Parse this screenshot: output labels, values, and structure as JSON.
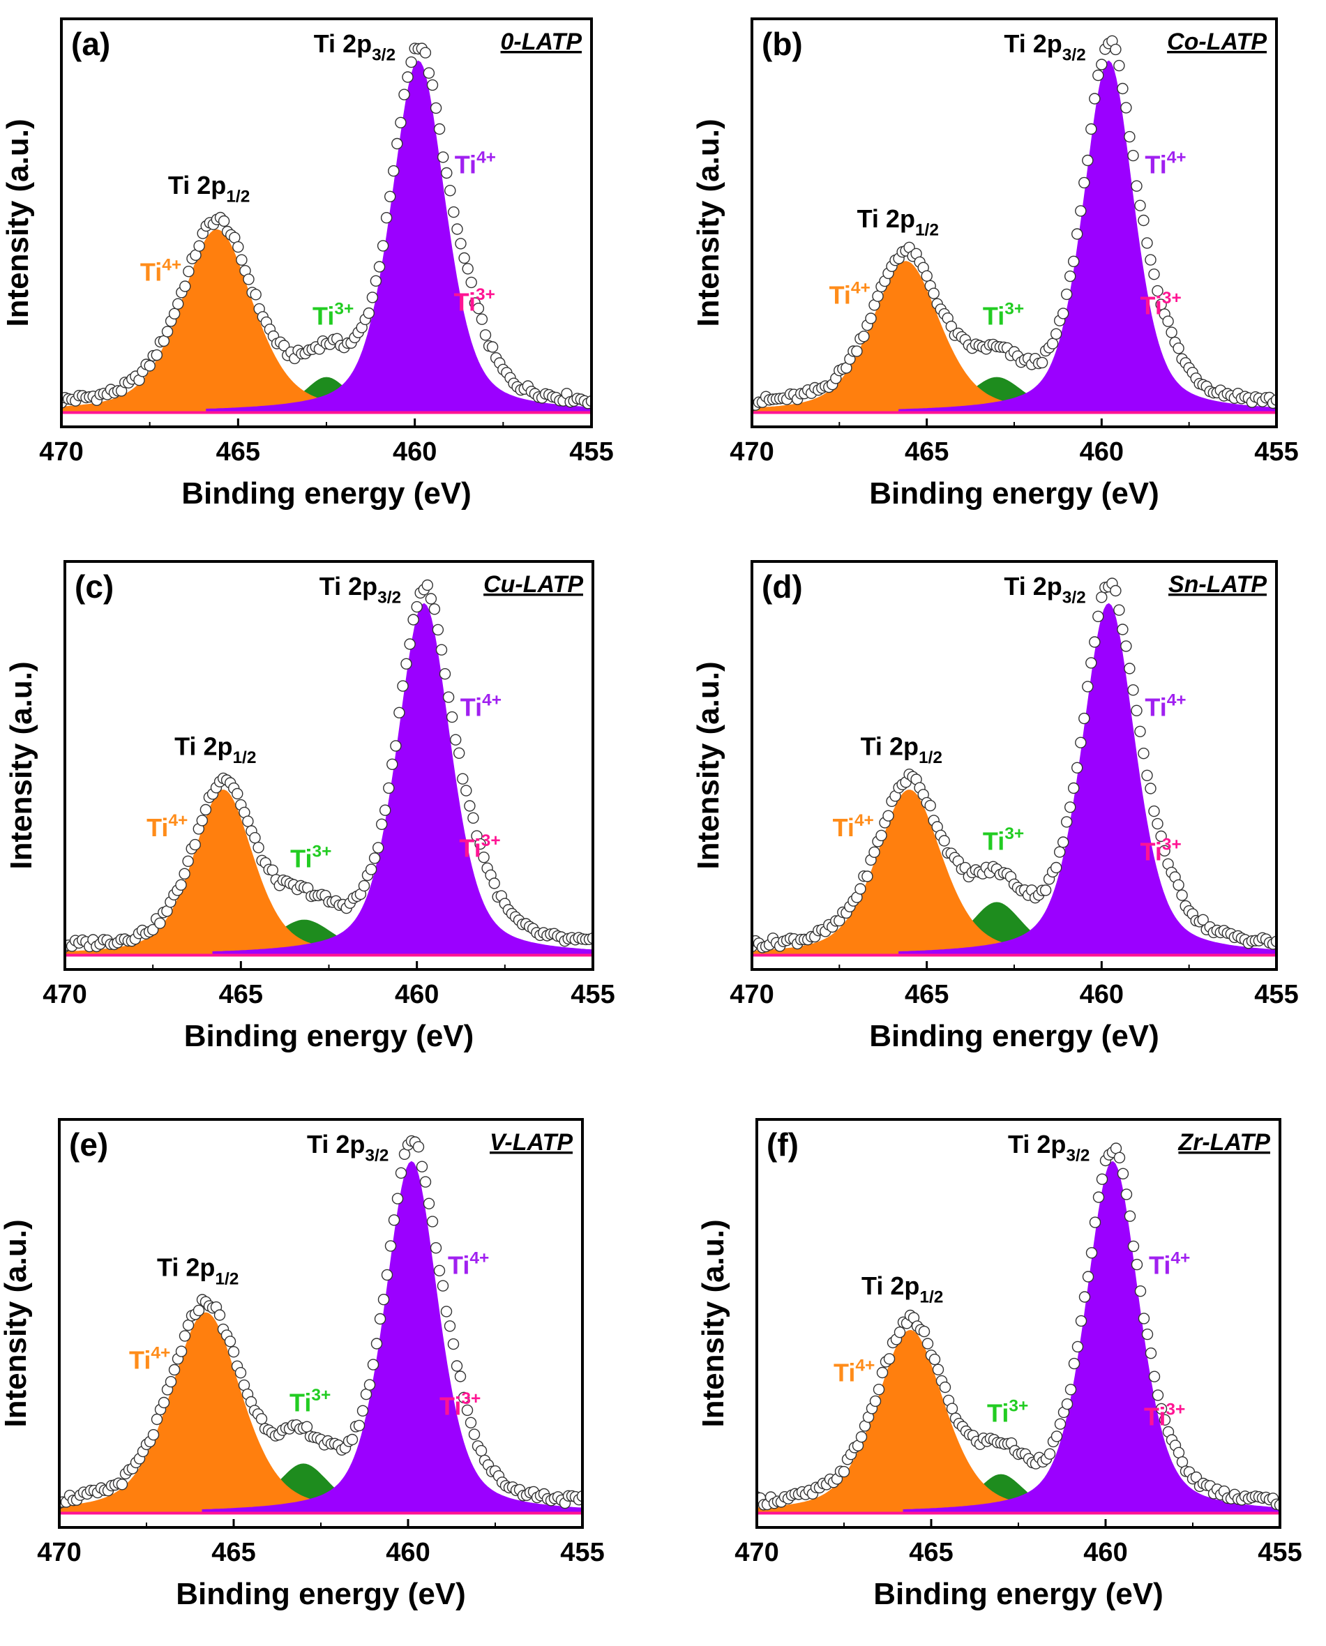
{
  "figure": {
    "axis_xlabel": "Binding energy (eV)",
    "axis_ylabel": "Intensity (a.u.)",
    "x_ticks": [
      "470",
      "465",
      "460",
      "455"
    ],
    "colors": {
      "ti4_p12": "#ff7f0e",
      "ti3_p12": "#1e8c1e",
      "ti4_p32": "#9b00ff",
      "ti3_p32": "#ff1493",
      "label_ti4_p12": "#ff8c1a",
      "label_ti3_p12": "#22cc22",
      "label_ti4_p32": "#a020f0",
      "label_ti3_p32": "#ff1493",
      "frame": "#000000",
      "marker_edge": "#333333"
    }
  },
  "chart_data": [
    {
      "type": "area",
      "panel": "(a)",
      "sample": "0-LATP",
      "title": "0-LATP",
      "xlabel": "Binding energy (eV)",
      "ylabel": "Intensity (a.u.)",
      "xlim": [
        470,
        455
      ],
      "ylim": [
        0,
        1.07
      ],
      "grid": false,
      "peaks": [
        {
          "name": "Ti4+ (2p1/2)",
          "center": 465.6,
          "height": 0.52,
          "fwhm": 2.4
        },
        {
          "name": "Ti3+ (2p1/2)",
          "center": 462.5,
          "height": 0.1,
          "fwhm": 1.5
        },
        {
          "name": "Ti4+ (2p3/2)",
          "center": 459.9,
          "height": 1.0,
          "fwhm": 1.8
        },
        {
          "name": "Ti3+ (2p3/2)",
          "center": 458.5,
          "height": 0.14,
          "fwhm": 1.4
        }
      ],
      "annotations": {
        "p12": {
          "main": "Ti 2p",
          "sub": "1/2"
        },
        "p32": {
          "main": "Ti 2p",
          "sub": "3/2"
        },
        "ti4_left": {
          "main": "Ti",
          "sup": "4+"
        },
        "ti3_left": {
          "main": "Ti",
          "sup": "3+"
        },
        "ti4_right": {
          "main": "Ti",
          "sup": "4+"
        },
        "ti3_right": {
          "main": "Ti",
          "sup": "3+"
        }
      }
    },
    {
      "type": "area",
      "panel": "(b)",
      "sample": "Co-LATP",
      "title": "Co-LATP",
      "xlabel": "Binding energy (eV)",
      "ylabel": "Intensity (a.u.)",
      "xlim": [
        470,
        455
      ],
      "ylim": [
        0,
        1.07
      ],
      "grid": false,
      "peaks": [
        {
          "name": "Ti4+ (2p1/2)",
          "center": 465.6,
          "height": 0.43,
          "fwhm": 2.3
        },
        {
          "name": "Ti3+ (2p1/2)",
          "center": 463.0,
          "height": 0.1,
          "fwhm": 1.8
        },
        {
          "name": "Ti4+ (2p3/2)",
          "center": 459.8,
          "height": 1.0,
          "fwhm": 1.7
        },
        {
          "name": "Ti3+ (2p3/2)",
          "center": 458.5,
          "height": 0.13,
          "fwhm": 1.6
        }
      ],
      "annotations": {
        "p12": {
          "main": "Ti 2p",
          "sub": "1/2"
        },
        "p32": {
          "main": "Ti 2p",
          "sub": "3/2"
        },
        "ti4_left": {
          "main": "Ti",
          "sup": "4+"
        },
        "ti3_left": {
          "main": "Ti",
          "sup": "3+"
        },
        "ti4_right": {
          "main": "Ti",
          "sup": "4+"
        },
        "ti3_right": {
          "main": "Ti",
          "sup": "3+"
        }
      }
    },
    {
      "type": "area",
      "panel": "(c)",
      "sample": "Cu-LATP",
      "title": "Cu-LATP",
      "xlabel": "Binding energy (eV)",
      "ylabel": "Intensity (a.u.)",
      "xlim": [
        470,
        455
      ],
      "ylim": [
        0,
        1.07
      ],
      "grid": false,
      "peaks": [
        {
          "name": "Ti4+ (2p1/2)",
          "center": 465.5,
          "height": 0.47,
          "fwhm": 2.0
        },
        {
          "name": "Ti3+ (2p1/2)",
          "center": 463.2,
          "height": 0.1,
          "fwhm": 2.0
        },
        {
          "name": "Ti4+ (2p3/2)",
          "center": 459.8,
          "height": 1.0,
          "fwhm": 1.8
        },
        {
          "name": "Ti3+ (2p3/2)",
          "center": 458.4,
          "height": 0.13,
          "fwhm": 1.6
        }
      ],
      "annotations": {
        "p12": {
          "main": "Ti 2p",
          "sub": "1/2"
        },
        "p32": {
          "main": "Ti 2p",
          "sub": "3/2"
        },
        "ti4_left": {
          "main": "Ti",
          "sup": "4+"
        },
        "ti3_left": {
          "main": "Ti",
          "sup": "3+"
        },
        "ti4_right": {
          "main": "Ti",
          "sup": "4+"
        },
        "ti3_right": {
          "main": "Ti",
          "sup": "3+"
        }
      }
    },
    {
      "type": "area",
      "panel": "(d)",
      "sample": "Sn-LATP",
      "title": "Sn-LATP",
      "xlabel": "Binding energy (eV)",
      "ylabel": "Intensity (a.u.)",
      "xlim": [
        470,
        455
      ],
      "ylim": [
        0,
        1.07
      ],
      "grid": false,
      "peaks": [
        {
          "name": "Ti4+ (2p1/2)",
          "center": 465.5,
          "height": 0.47,
          "fwhm": 2.2
        },
        {
          "name": "Ti3+ (2p1/2)",
          "center": 463.0,
          "height": 0.15,
          "fwhm": 1.8
        },
        {
          "name": "Ti4+ (2p3/2)",
          "center": 459.8,
          "height": 1.0,
          "fwhm": 1.8
        },
        {
          "name": "Ti3+ (2p3/2)",
          "center": 458.5,
          "height": 0.12,
          "fwhm": 1.7
        }
      ],
      "annotations": {
        "p12": {
          "main": "Ti 2p",
          "sub": "1/2"
        },
        "p32": {
          "main": "Ti 2p",
          "sub": "3/2"
        },
        "ti4_left": {
          "main": "Ti",
          "sup": "4+"
        },
        "ti3_left": {
          "main": "Ti",
          "sup": "3+"
        },
        "ti4_right": {
          "main": "Ti",
          "sup": "4+"
        },
        "ti3_right": {
          "main": "Ti",
          "sup": "3+"
        }
      }
    },
    {
      "type": "area",
      "panel": "(e)",
      "sample": "V-LATP",
      "title": "V-LATP",
      "xlabel": "Binding energy (eV)",
      "ylabel": "Intensity (a.u.)",
      "xlim": [
        470,
        455
      ],
      "ylim": [
        0,
        1.07
      ],
      "grid": false,
      "peaks": [
        {
          "name": "Ti4+ (2p1/2)",
          "center": 465.8,
          "height": 0.57,
          "fwhm": 2.4
        },
        {
          "name": "Ti3+ (2p1/2)",
          "center": 463.0,
          "height": 0.14,
          "fwhm": 1.8
        },
        {
          "name": "Ti4+ (2p3/2)",
          "center": 459.9,
          "height": 1.0,
          "fwhm": 1.8
        },
        {
          "name": "Ti3+ (2p3/2)",
          "center": 458.7,
          "height": 0.13,
          "fwhm": 1.5
        }
      ],
      "annotations": {
        "p12": {
          "main": "Ti 2p",
          "sub": "1/2"
        },
        "p32": {
          "main": "Ti 2p",
          "sub": "3/2"
        },
        "ti4_left": {
          "main": "Ti",
          "sup": "4+"
        },
        "ti3_left": {
          "main": "Ti",
          "sup": "3+"
        },
        "ti4_right": {
          "main": "Ti",
          "sup": "4+"
        },
        "ti3_right": {
          "main": "Ti",
          "sup": "3+"
        }
      }
    },
    {
      "type": "area",
      "panel": "(f)",
      "sample": "Zr-LATP",
      "title": "Zr-LATP",
      "xlabel": "Binding energy (eV)",
      "ylabel": "Intensity (a.u.)",
      "xlim": [
        470,
        455
      ],
      "ylim": [
        0,
        1.07
      ],
      "grid": false,
      "peaks": [
        {
          "name": "Ti4+ (2p1/2)",
          "center": 465.6,
          "height": 0.52,
          "fwhm": 2.3
        },
        {
          "name": "Ti3+ (2p1/2)",
          "center": 463.0,
          "height": 0.11,
          "fwhm": 1.6
        },
        {
          "name": "Ti4+ (2p3/2)",
          "center": 459.8,
          "height": 1.0,
          "fwhm": 1.8
        },
        {
          "name": "Ti3+ (2p3/2)",
          "center": 458.5,
          "height": 0.05,
          "fwhm": 1.6
        }
      ],
      "annotations": {
        "p12": {
          "main": "Ti 2p",
          "sub": "1/2"
        },
        "p32": {
          "main": "Ti 2p",
          "sub": "3/2"
        },
        "ti4_left": {
          "main": "Ti",
          "sup": "4+"
        },
        "ti3_left": {
          "main": "Ti",
          "sup": "3+"
        },
        "ti4_right": {
          "main": "Ti",
          "sup": "4+"
        },
        "ti3_right": {
          "main": "Ti",
          "sup": "3+"
        }
      }
    }
  ]
}
